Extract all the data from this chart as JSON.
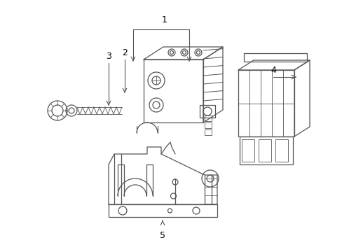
{
  "bg_color": "#ffffff",
  "line_color": "#555555",
  "label_color": "#000000",
  "fig_width": 4.89,
  "fig_height": 3.6,
  "dpi": 100
}
